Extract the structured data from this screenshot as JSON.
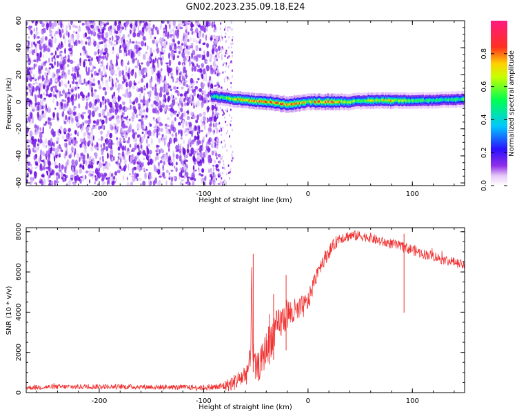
{
  "title": "GN02.2023.235.09.18.E24",
  "colors": {
    "snr_line": "#f03030",
    "spectrogram_noise": "#7a1fe6",
    "colormap": [
      "#ffffff",
      "#c9a8f5",
      "#8a2be2",
      "#2020ff",
      "#00d8ff",
      "#00ff40",
      "#ffff00",
      "#ff2020",
      "#ff1090"
    ]
  },
  "chart_data": [
    {
      "type": "heatmap",
      "name": "spectrogram",
      "xlabel": "Height of straight line (km)",
      "ylabel": "Frequency (Hz)",
      "xlim": [
        -270,
        150
      ],
      "ylim": [
        -62,
        60
      ],
      "xticks": [
        -200,
        -100,
        0,
        100
      ],
      "yticks": [
        -60,
        -40,
        -20,
        0,
        20,
        40,
        60
      ],
      "grid": false,
      "noise_region_x": [
        -270,
        -85
      ],
      "signal_band": {
        "x": [
          -93,
          -80,
          -60,
          -40,
          -20,
          0,
          20,
          40,
          60,
          80,
          100,
          120,
          150
        ],
        "center_freq": [
          4,
          3,
          1,
          0,
          -2,
          0,
          0,
          0,
          1,
          1,
          1,
          1,
          2
        ],
        "peak_amplitude": [
          0.5,
          0.6,
          0.85,
          0.8,
          0.85,
          0.7,
          0.95,
          0.6,
          0.7,
          0.75,
          0.55,
          0.5,
          0.55
        ]
      },
      "colorbar": {
        "label": "Normalized spectral amplitude",
        "range": [
          0,
          1
        ],
        "ticks": [
          "0.0",
          "0.2",
          "0.4",
          "0.6",
          "0.8"
        ]
      }
    },
    {
      "type": "line",
      "name": "snr",
      "xlabel": "Height of straight line (km)",
      "ylabel": "SNR (10 * v/v)",
      "xlim": [
        -270,
        150
      ],
      "ylim": [
        0,
        8200
      ],
      "xticks": [
        -200,
        -100,
        0,
        100
      ],
      "yticks": [
        0,
        2000,
        4000,
        6000,
        8000
      ],
      "grid": false,
      "series": [
        {
          "x": [
            -270,
            -250,
            -200,
            -150,
            -100,
            -85,
            -75,
            -65,
            -60,
            -55,
            -54,
            -53,
            -50,
            -45,
            -40,
            -35,
            -30,
            -20,
            -10,
            0,
            10,
            20,
            30,
            40,
            50,
            60,
            70,
            80,
            90,
            100,
            110,
            120,
            130,
            140,
            150
          ],
          "y": [
            250,
            280,
            300,
            280,
            250,
            280,
            400,
            700,
            900,
            1500,
            6500,
            2000,
            1100,
            1500,
            2200,
            2800,
            3200,
            3900,
            4000,
            4500,
            6200,
            7000,
            7700,
            7800,
            7800,
            7700,
            7500,
            7400,
            7250,
            7100,
            6900,
            6800,
            6600,
            6500,
            6300
          ],
          "noise_amplitude": [
            120,
            120,
            130,
            130,
            130,
            200,
            350,
            500,
            600,
            800,
            0,
            700,
            700,
            800,
            900,
            1000,
            900,
            800,
            700,
            500,
            400,
            350,
            300,
            280,
            250,
            250,
            250,
            250,
            260,
            280,
            250,
            250,
            250,
            230,
            220
          ]
        }
      ]
    }
  ]
}
